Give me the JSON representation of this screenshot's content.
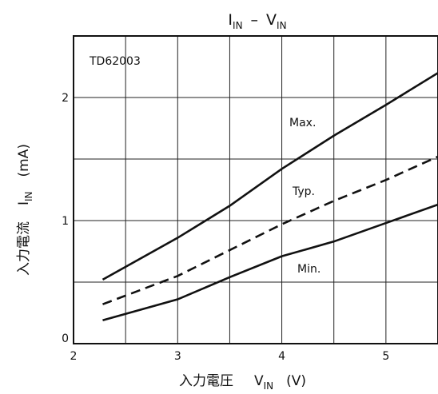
{
  "chart_data": {
    "type": "line",
    "title": {
      "main": "I",
      "main_sub": "IN",
      "sep": "–",
      "second": "V",
      "second_sub": "IN"
    },
    "part_number": "TD62003",
    "xlabel": {
      "prefix": "入力電圧",
      "sym": "V",
      "sym_sub": "IN",
      "unit": "(V)"
    },
    "ylabel": {
      "prefix": "入力電流",
      "sym": "I",
      "sym_sub": "IN",
      "unit": "(mA)"
    },
    "xlim": [
      2,
      5.5
    ],
    "ylim": [
      0,
      2.5
    ],
    "x_ticks": [
      2,
      3,
      4,
      5
    ],
    "y_ticks": [
      0,
      1,
      2
    ],
    "x_tick_labels": [
      "2",
      "3",
      "4",
      "5"
    ],
    "y_tick_labels": [
      "0",
      "1",
      "2"
    ],
    "grid": true,
    "series": [
      {
        "name": "Max.",
        "style": "solid",
        "x": [
          2.28,
          3.0,
          3.5,
          4.0,
          4.5,
          5.0,
          5.5
        ],
        "y": [
          0.52,
          0.86,
          1.12,
          1.42,
          1.69,
          1.94,
          2.2
        ]
      },
      {
        "name": "Typ.",
        "style": "dashed",
        "x": [
          2.28,
          3.0,
          3.5,
          4.0,
          4.5,
          5.0,
          5.5
        ],
        "y": [
          0.32,
          0.55,
          0.76,
          0.97,
          1.16,
          1.33,
          1.52
        ]
      },
      {
        "name": "Min.",
        "style": "solid",
        "x": [
          2.28,
          3.0,
          3.5,
          4.0,
          4.5,
          5.0,
          5.5
        ],
        "y": [
          0.19,
          0.36,
          0.54,
          0.71,
          0.83,
          0.98,
          1.13
        ]
      }
    ]
  }
}
